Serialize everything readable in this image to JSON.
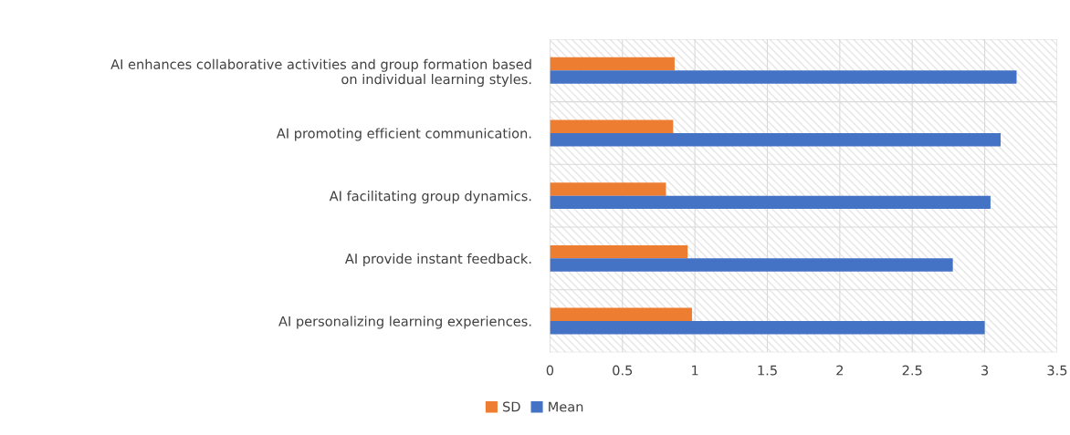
{
  "chart_data": {
    "type": "bar",
    "orientation": "horizontal",
    "categories": [
      "AI enhances collaborative activities and group formation based\non individual learning styles.",
      "AI promoting efficient communication.",
      "AI facilitating group dynamics.",
      "AI provide instant feedback.",
      "AI personalizing learning experiences."
    ],
    "series": [
      {
        "name": "SD",
        "color": "#ed7d31",
        "values": [
          0.86,
          0.85,
          0.8,
          0.95,
          0.98
        ]
      },
      {
        "name": "Mean",
        "color": "#4472c4",
        "values": [
          3.22,
          3.11,
          3.04,
          2.78,
          3.0
        ]
      }
    ],
    "xlim": [
      0,
      3.5
    ],
    "xticks": [
      0,
      {
        "value": 0.5,
        "label": "0.5"
      },
      1,
      {
        "value": 1.5,
        "label": "1.5"
      },
      2,
      {
        "value": 2.5,
        "label": "2.5"
      },
      3,
      {
        "value": 3.5,
        "label": "3.5"
      }
    ],
    "grid": true,
    "legend": "bottom"
  }
}
